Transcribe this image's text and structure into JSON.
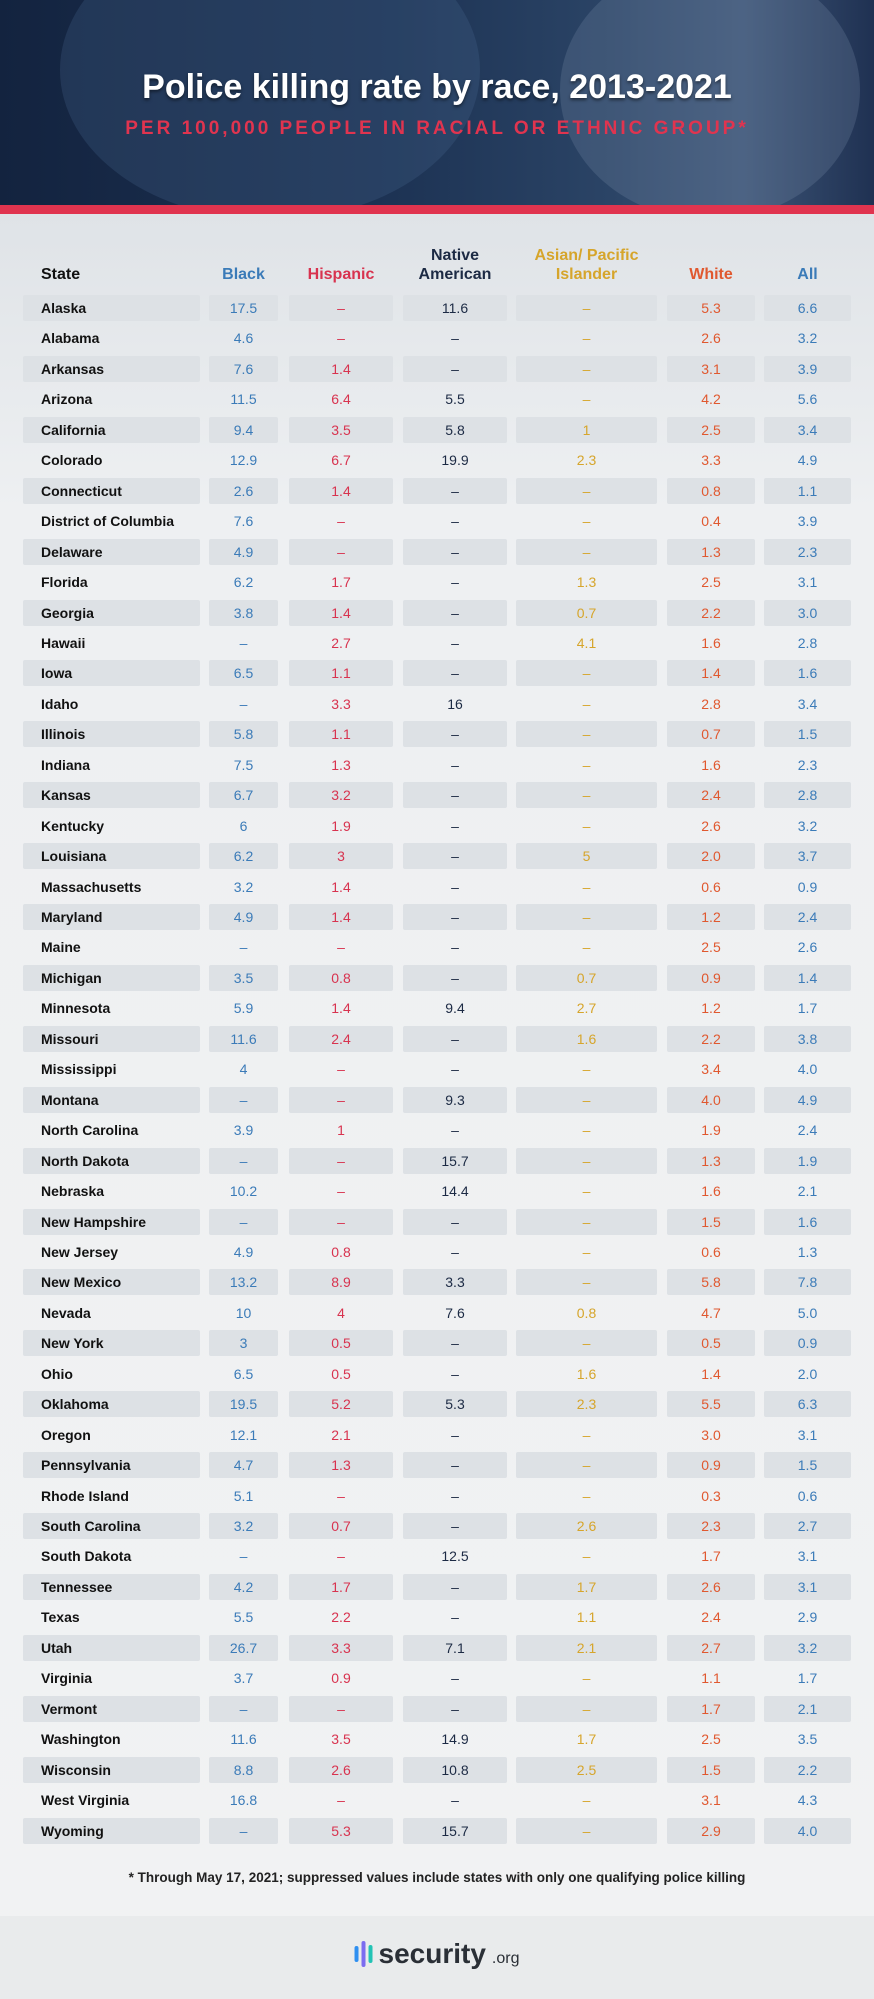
{
  "chart_data": {
    "type": "table",
    "title": "Police killing rate by race, 2013-2021",
    "subtitle": "PER 100,000 PEOPLE IN RACIAL OR ETHNIC GROUP*",
    "columns": [
      "State",
      "Black",
      "Hispanic",
      "Native American",
      "Asian/ Pacific Islander",
      "White",
      "All"
    ],
    "column_colors": [
      "#111111",
      "#3b7bb8",
      "#d8334f",
      "#1c2a44",
      "#d6a52b",
      "#e0582f",
      "#3b7bb8"
    ],
    "rows": [
      [
        "Alaska",
        "17.5",
        "–",
        "11.6",
        "–",
        "5.3",
        "6.6"
      ],
      [
        "Alabama",
        "4.6",
        "–",
        "–",
        "–",
        "2.6",
        "3.2"
      ],
      [
        "Arkansas",
        "7.6",
        "1.4",
        "–",
        "–",
        "3.1",
        "3.9"
      ],
      [
        "Arizona",
        "11.5",
        "6.4",
        "5.5",
        "–",
        "4.2",
        "5.6"
      ],
      [
        "California",
        "9.4",
        "3.5",
        "5.8",
        "1",
        "2.5",
        "3.4"
      ],
      [
        "Colorado",
        "12.9",
        "6.7",
        "19.9",
        "2.3",
        "3.3",
        "4.9"
      ],
      [
        "Connecticut",
        "2.6",
        "1.4",
        "–",
        "–",
        "0.8",
        "1.1"
      ],
      [
        "District of Columbia",
        "7.6",
        "–",
        "–",
        "–",
        "0.4",
        "3.9"
      ],
      [
        "Delaware",
        "4.9",
        "–",
        "–",
        "–",
        "1.3",
        "2.3"
      ],
      [
        "Florida",
        "6.2",
        "1.7",
        "–",
        "1.3",
        "2.5",
        "3.1"
      ],
      [
        "Georgia",
        "3.8",
        "1.4",
        "–",
        "0.7",
        "2.2",
        "3.0"
      ],
      [
        "Hawaii",
        "–",
        "2.7",
        "–",
        "4.1",
        "1.6",
        "2.8"
      ],
      [
        "Iowa",
        "6.5",
        "1.1",
        "–",
        "–",
        "1.4",
        "1.6"
      ],
      [
        "Idaho",
        "–",
        "3.3",
        "16",
        "–",
        "2.8",
        "3.4"
      ],
      [
        "Illinois",
        "5.8",
        "1.1",
        "–",
        "–",
        "0.7",
        "1.5"
      ],
      [
        "Indiana",
        "7.5",
        "1.3",
        "–",
        "–",
        "1.6",
        "2.3"
      ],
      [
        "Kansas",
        "6.7",
        "3.2",
        "–",
        "–",
        "2.4",
        "2.8"
      ],
      [
        "Kentucky",
        "6",
        "1.9",
        "–",
        "–",
        "2.6",
        "3.2"
      ],
      [
        "Louisiana",
        "6.2",
        "3",
        "–",
        "5",
        "2.0",
        "3.7"
      ],
      [
        "Massachusetts",
        "3.2",
        "1.4",
        "–",
        "–",
        "0.6",
        "0.9"
      ],
      [
        "Maryland",
        "4.9",
        "1.4",
        "–",
        "–",
        "1.2",
        "2.4"
      ],
      [
        "Maine",
        "–",
        "–",
        "–",
        "–",
        "2.5",
        "2.6"
      ],
      [
        "Michigan",
        "3.5",
        "0.8",
        "–",
        "0.7",
        "0.9",
        "1.4"
      ],
      [
        "Minnesota",
        "5.9",
        "1.4",
        "9.4",
        "2.7",
        "1.2",
        "1.7"
      ],
      [
        "Missouri",
        "11.6",
        "2.4",
        "–",
        "1.6",
        "2.2",
        "3.8"
      ],
      [
        "Mississippi",
        "4",
        "–",
        "–",
        "–",
        "3.4",
        "4.0"
      ],
      [
        "Montana",
        "–",
        "–",
        "9.3",
        "–",
        "4.0",
        "4.9"
      ],
      [
        "North Carolina",
        "3.9",
        "1",
        "–",
        "–",
        "1.9",
        "2.4"
      ],
      [
        "North Dakota",
        "–",
        "–",
        "15.7",
        "–",
        "1.3",
        "1.9"
      ],
      [
        "Nebraska",
        "10.2",
        "–",
        "14.4",
        "–",
        "1.6",
        "2.1"
      ],
      [
        "New Hampshire",
        "–",
        "–",
        "–",
        "–",
        "1.5",
        "1.6"
      ],
      [
        "New Jersey",
        "4.9",
        "0.8",
        "–",
        "–",
        "0.6",
        "1.3"
      ],
      [
        "New Mexico",
        "13.2",
        "8.9",
        "3.3",
        "–",
        "5.8",
        "7.8"
      ],
      [
        "Nevada",
        "10",
        "4",
        "7.6",
        "0.8",
        "4.7",
        "5.0"
      ],
      [
        "New York",
        "3",
        "0.5",
        "–",
        "–",
        "0.5",
        "0.9"
      ],
      [
        "Ohio",
        "6.5",
        "0.5",
        "–",
        "1.6",
        "1.4",
        "2.0"
      ],
      [
        "Oklahoma",
        "19.5",
        "5.2",
        "5.3",
        "2.3",
        "5.5",
        "6.3"
      ],
      [
        "Oregon",
        "12.1",
        "2.1",
        "–",
        "–",
        "3.0",
        "3.1"
      ],
      [
        "Pennsylvania",
        "4.7",
        "1.3",
        "–",
        "–",
        "0.9",
        "1.5"
      ],
      [
        "Rhode Island",
        "5.1",
        "–",
        "–",
        "–",
        "0.3",
        "0.6"
      ],
      [
        "South Carolina",
        "3.2",
        "0.7",
        "–",
        "2.6",
        "2.3",
        "2.7"
      ],
      [
        "South Dakota",
        "–",
        "–",
        "12.5",
        "–",
        "1.7",
        "3.1"
      ],
      [
        "Tennessee",
        "4.2",
        "1.7",
        "–",
        "1.7",
        "2.6",
        "3.1"
      ],
      [
        "Texas",
        "5.5",
        "2.2",
        "–",
        "1.1",
        "2.4",
        "2.9"
      ],
      [
        "Utah",
        "26.7",
        "3.3",
        "7.1",
        "2.1",
        "2.7",
        "3.2"
      ],
      [
        "Virginia",
        "3.7",
        "0.9",
        "–",
        "–",
        "1.1",
        "1.7"
      ],
      [
        "Vermont",
        "–",
        "–",
        "–",
        "–",
        "1.7",
        "2.1"
      ],
      [
        "Washington",
        "11.6",
        "3.5",
        "14.9",
        "1.7",
        "2.5",
        "3.5"
      ],
      [
        "Wisconsin",
        "8.8",
        "2.6",
        "10.8",
        "2.5",
        "1.5",
        "2.2"
      ],
      [
        "West Virginia",
        "16.8",
        "–",
        "–",
        "–",
        "3.1",
        "4.3"
      ],
      [
        "Wyoming",
        "–",
        "5.3",
        "15.7",
        "–",
        "2.9",
        "4.0"
      ]
    ],
    "footnote": "* Through May 17, 2021; suppressed values include states with only one qualifying police killing"
  },
  "footer": {
    "logo_text": "security",
    "logo_suffix": ".org"
  }
}
